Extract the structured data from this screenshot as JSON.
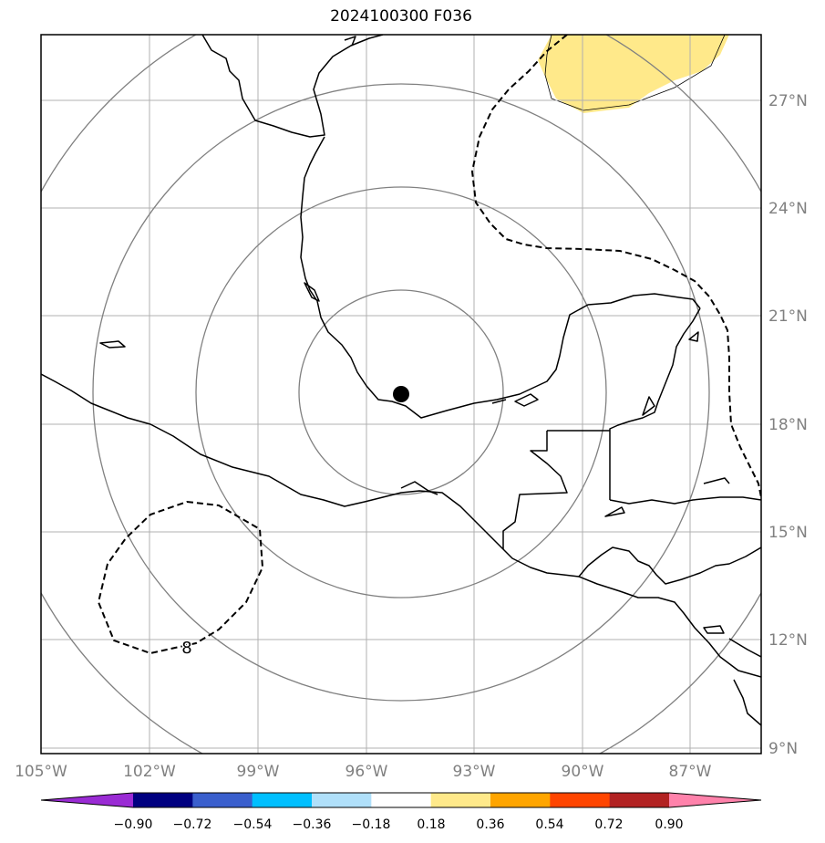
{
  "title": "2024100300 F036",
  "map": {
    "lon_ticks": [
      "105°W",
      "102°W",
      "99°W",
      "96°W",
      "93°W",
      "90°W",
      "87°W"
    ],
    "lat_ticks": [
      "27°N",
      "24°N",
      "21°N",
      "18°N",
      "15°N",
      "12°N",
      "9°N"
    ],
    "center_marker": {
      "lon": -95.0,
      "lat": 18.8
    },
    "contour_label": "8",
    "fill_color": "#ffe98a"
  },
  "colorbar": {
    "tick_labels": [
      "−0.90",
      "−0.72",
      "−0.54",
      "−0.36",
      "−0.18",
      "0.18",
      "0.36",
      "0.54",
      "0.72",
      "0.90"
    ],
    "colors": [
      "#9a2bd4",
      "#000080",
      "#3a5fcd",
      "#00bfff",
      "#b0e0fa",
      "#ffffff",
      "#ffe98a",
      "#ffa500",
      "#ff4500",
      "#b22222",
      "#ff82ab"
    ]
  }
}
